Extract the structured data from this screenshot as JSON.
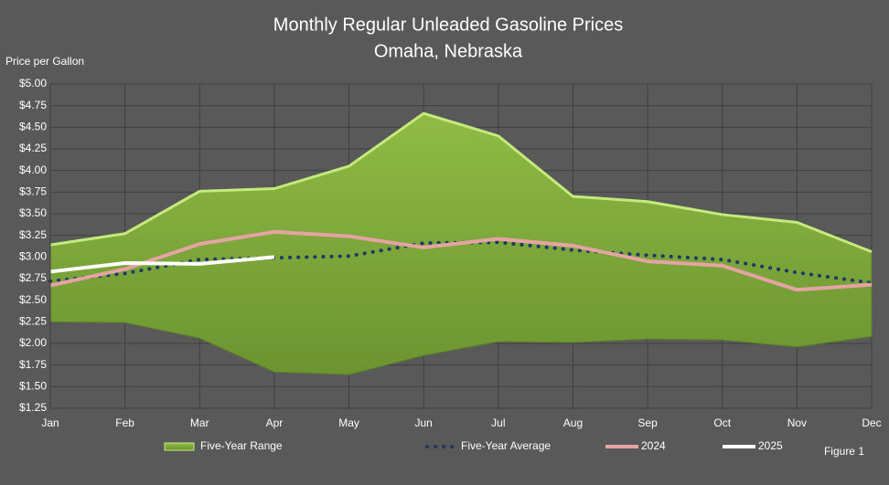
{
  "chart_data": {
    "type": "line",
    "title": "Monthly Regular Unleaded Gasoline Prices",
    "subtitle": "Omaha, Nebraska",
    "y_label": "Price per Gallon",
    "annotation": "Figure 1",
    "categories": [
      "Jan",
      "Feb",
      "Mar",
      "Apr",
      "May",
      "Jun",
      "Jul",
      "Aug",
      "Sep",
      "Oct",
      "Nov",
      "Dec"
    ],
    "ylim": [
      1.25,
      5.0
    ],
    "yticks": [
      {
        "value": 1.25,
        "label": "$1.25"
      },
      {
        "value": 1.5,
        "label": "$1.50"
      },
      {
        "value": 1.75,
        "label": "$1.75"
      },
      {
        "value": 2.0,
        "label": "$2.00"
      },
      {
        "value": 2.25,
        "label": "$2.25"
      },
      {
        "value": 2.5,
        "label": "$2.50"
      },
      {
        "value": 2.75,
        "label": "$2.75"
      },
      {
        "value": 3.0,
        "label": "$3.00"
      },
      {
        "value": 3.25,
        "label": "$3.25"
      },
      {
        "value": 3.5,
        "label": "$3.50"
      },
      {
        "value": 3.75,
        "label": "$3.75"
      },
      {
        "value": 4.0,
        "label": "$4.00"
      },
      {
        "value": 4.25,
        "label": "$4.25"
      },
      {
        "value": 4.5,
        "label": "$4.50"
      },
      {
        "value": 4.75,
        "label": "$4.75"
      },
      {
        "value": 5.0,
        "label": "$5.00"
      }
    ],
    "grid": true,
    "series": [
      {
        "name": "Five-Year Range",
        "type": "range",
        "color": "#7ea83a",
        "values": [
          3.14,
          3.27,
          3.76,
          3.79,
          4.05,
          4.66,
          4.4,
          3.7,
          3.64,
          3.49,
          3.4,
          3.06
        ],
        "low": [
          2.25,
          2.24,
          2.06,
          1.67,
          1.64,
          1.86,
          2.02,
          2.01,
          2.05,
          2.04,
          1.96,
          2.08
        ]
      },
      {
        "name": "Five-Year Average",
        "type": "dotted",
        "color": "#1f3864",
        "values": [
          2.72,
          2.81,
          2.97,
          2.99,
          3.01,
          3.16,
          3.17,
          3.08,
          3.02,
          2.97,
          2.82,
          2.7
        ]
      },
      {
        "name": "2024",
        "type": "line",
        "color": "#e6a3a3",
        "values": [
          2.67,
          2.86,
          3.15,
          3.29,
          3.24,
          3.11,
          3.21,
          3.13,
          2.95,
          2.9,
          2.62,
          2.68
        ]
      },
      {
        "name": "2025",
        "type": "line",
        "color": "#ffffff",
        "values": [
          2.83,
          2.93,
          2.92,
          3.0,
          null,
          null,
          null,
          null,
          null,
          null,
          null,
          null
        ]
      }
    ]
  }
}
